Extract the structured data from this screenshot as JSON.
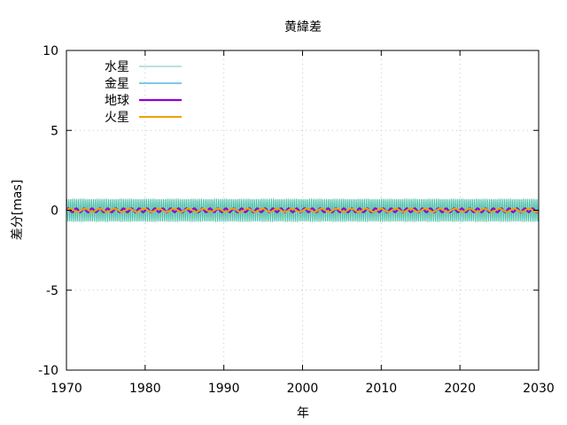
{
  "chart_data": {
    "type": "line",
    "title": "黄緯差",
    "xlabel": "年",
    "ylabel": "差分[mas]",
    "xlim": [
      1970,
      2030
    ],
    "ylim": [
      -10,
      10
    ],
    "xticks": [
      1970,
      1980,
      1990,
      2000,
      2010,
      2020,
      2030
    ],
    "yticks": [
      10,
      5,
      0,
      -5,
      -10
    ],
    "xtick_labels": [
      "1970",
      "1980",
      "1990",
      "2000",
      "2010",
      "2020",
      "2030"
    ],
    "ytick_labels": [
      "10",
      "5",
      "0",
      "-5",
      "-10"
    ],
    "grid": true,
    "legend_position": "top-left",
    "series": [
      {
        "name": "水星",
        "color": "#3cb9a0",
        "amplitude": 0.7,
        "period_years": 0.2408,
        "pattern": "oscillation"
      },
      {
        "name": "金星",
        "color": "#56b4e9",
        "amplitude": 0.05,
        "period_years": 0.6152,
        "pattern": "oscillation"
      },
      {
        "name": "地球",
        "color": "#9400d3",
        "amplitude": 0.12,
        "period_years": 1.0,
        "pattern": "oscillation"
      },
      {
        "name": "火星",
        "color": "#f0a000",
        "amplitude": 0.1,
        "period_years": 1.8808,
        "pattern": "oscillation"
      }
    ]
  }
}
